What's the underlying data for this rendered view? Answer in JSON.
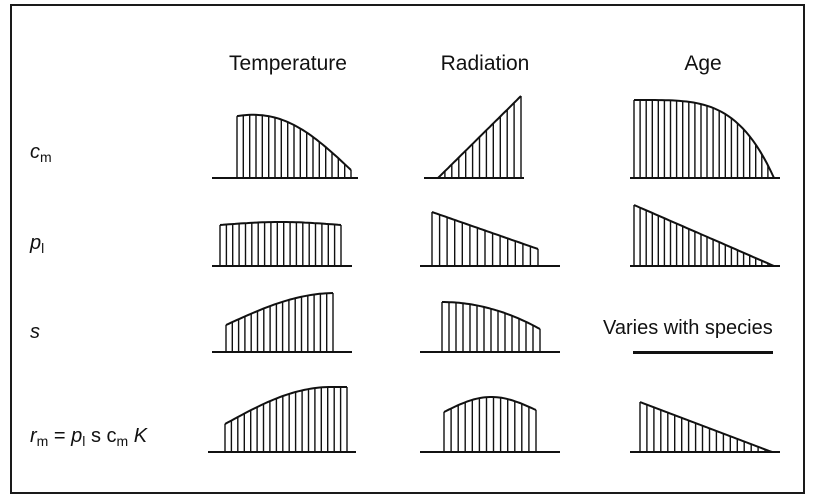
{
  "columns": [
    "Temperature",
    "Radiation",
    "Age"
  ],
  "rows": [
    {
      "var": "c",
      "sub": "m"
    },
    {
      "var": "p",
      "sub": "l"
    },
    {
      "var": "s",
      "sub": ""
    },
    {
      "lhs_var": "r",
      "lhs_sub": "m",
      "eq": " = ",
      "p": "p",
      "p_sub": "l",
      "s": " s c",
      "cm_sub": "m",
      "k": " K"
    }
  ],
  "note": "Varies with species",
  "colors": {
    "ink": "#111111",
    "frame": "#1a1a1a",
    "background": "#ffffff"
  },
  "panels": [
    {
      "id": "cm-temperature",
      "row": 0,
      "col": 0,
      "shape": "hump, peak left then declining"
    },
    {
      "id": "cm-radiation",
      "row": 0,
      "col": 1,
      "shape": "linear rise"
    },
    {
      "id": "cm-age",
      "row": 0,
      "col": 2,
      "shape": "flat then falling steeply"
    },
    {
      "id": "pl-temperature",
      "row": 1,
      "col": 0,
      "shape": "flat plateau"
    },
    {
      "id": "pl-radiation",
      "row": 1,
      "col": 1,
      "shape": "gradual decline"
    },
    {
      "id": "pl-age",
      "row": 1,
      "col": 2,
      "shape": "linear decline to zero"
    },
    {
      "id": "s-temperature",
      "row": 2,
      "col": 0,
      "shape": "rise"
    },
    {
      "id": "s-radiation",
      "row": 2,
      "col": 1,
      "shape": "decline"
    },
    {
      "id": "rm-temperature",
      "row": 3,
      "col": 0,
      "shape": "rise"
    },
    {
      "id": "rm-radiation",
      "row": 3,
      "col": 1,
      "shape": "hump"
    },
    {
      "id": "rm-age",
      "row": 3,
      "col": 2,
      "shape": "decline to zero"
    }
  ]
}
